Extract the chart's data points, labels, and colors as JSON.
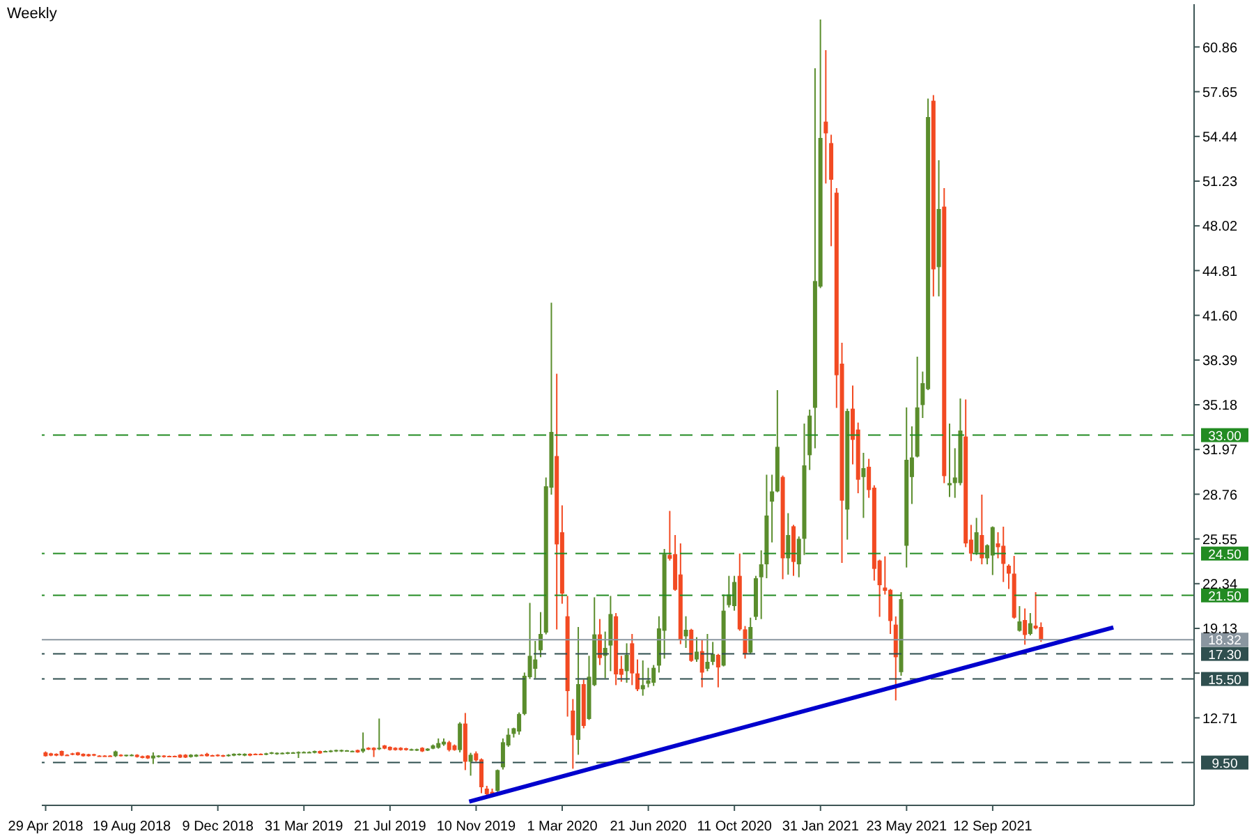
{
  "chart_data": {
    "type": "candlestick",
    "title": "Weekly",
    "x": [
      "2018-04-29",
      "2018-05-06",
      "2018-05-13",
      "2018-05-20",
      "2018-05-27",
      "2018-06-03",
      "2018-06-10",
      "2018-06-17",
      "2018-06-24",
      "2018-07-01",
      "2018-07-08",
      "2018-07-15",
      "2018-07-22",
      "2018-07-29",
      "2018-08-05",
      "2018-08-12",
      "2018-08-19",
      "2018-08-26",
      "2018-09-02",
      "2018-09-09",
      "2018-09-16",
      "2018-09-23",
      "2018-09-30",
      "2018-10-07",
      "2018-10-14",
      "2018-10-21",
      "2018-10-28",
      "2018-11-04",
      "2018-11-11",
      "2018-11-18",
      "2018-11-25",
      "2018-12-02",
      "2018-12-09",
      "2018-12-16",
      "2018-12-23",
      "2018-12-30",
      "2019-01-06",
      "2019-01-13",
      "2019-01-20",
      "2019-01-27",
      "2019-02-03",
      "2019-02-10",
      "2019-02-17",
      "2019-02-24",
      "2019-03-03",
      "2019-03-10",
      "2019-03-17",
      "2019-03-24",
      "2019-03-31",
      "2019-04-07",
      "2019-04-14",
      "2019-04-21",
      "2019-04-28",
      "2019-05-05",
      "2019-05-12",
      "2019-05-19",
      "2019-05-26",
      "2019-06-02",
      "2019-06-09",
      "2019-06-16",
      "2019-06-23",
      "2019-06-30",
      "2019-07-07",
      "2019-07-14",
      "2019-07-21",
      "2019-07-28",
      "2019-08-04",
      "2019-08-11",
      "2019-08-18",
      "2019-08-25",
      "2019-09-01",
      "2019-09-08",
      "2019-09-15",
      "2019-09-22",
      "2019-09-29",
      "2019-10-06",
      "2019-10-13",
      "2019-10-20",
      "2019-10-27",
      "2019-11-03",
      "2019-11-10",
      "2019-11-17",
      "2019-11-24",
      "2019-12-01",
      "2019-12-08",
      "2019-12-15",
      "2019-12-22",
      "2019-12-29",
      "2020-01-05",
      "2020-01-12",
      "2020-01-19",
      "2020-01-26",
      "2020-02-02",
      "2020-02-09",
      "2020-02-16",
      "2020-02-23",
      "2020-03-01",
      "2020-03-08",
      "2020-03-15",
      "2020-03-22",
      "2020-03-29",
      "2020-04-05",
      "2020-04-12",
      "2020-04-19",
      "2020-04-26",
      "2020-05-03",
      "2020-05-10",
      "2020-05-17",
      "2020-05-24",
      "2020-05-31",
      "2020-06-07",
      "2020-06-14",
      "2020-06-21",
      "2020-06-28",
      "2020-07-05",
      "2020-07-12",
      "2020-07-19",
      "2020-07-26",
      "2020-08-02",
      "2020-08-09",
      "2020-08-16",
      "2020-08-23",
      "2020-08-30",
      "2020-09-06",
      "2020-09-13",
      "2020-09-20",
      "2020-09-27",
      "2020-10-04",
      "2020-10-11",
      "2020-10-18",
      "2020-10-25",
      "2020-11-01",
      "2020-11-08",
      "2020-11-15",
      "2020-11-22",
      "2020-11-29",
      "2020-12-06",
      "2020-12-13",
      "2020-12-20",
      "2020-12-27",
      "2021-01-03",
      "2021-01-10",
      "2021-01-17",
      "2021-01-24",
      "2021-01-31",
      "2021-02-07",
      "2021-02-14",
      "2021-02-21",
      "2021-02-28",
      "2021-03-07",
      "2021-03-14",
      "2021-03-21",
      "2021-03-28",
      "2021-04-04",
      "2021-04-11",
      "2021-04-18",
      "2021-04-25",
      "2021-05-02",
      "2021-05-09",
      "2021-05-16",
      "2021-05-23",
      "2021-05-30",
      "2021-06-06",
      "2021-06-13",
      "2021-06-20",
      "2021-06-27",
      "2021-07-04",
      "2021-07-11",
      "2021-07-18",
      "2021-07-25",
      "2021-08-01",
      "2021-08-08",
      "2021-08-15",
      "2021-08-22",
      "2021-08-29",
      "2021-09-05",
      "2021-09-12",
      "2021-09-19",
      "2021-09-26",
      "2021-10-03",
      "2021-10-10",
      "2021-10-17",
      "2021-10-24",
      "2021-10-31",
      "2021-11-07",
      "2021-11-14"
    ],
    "ohlc": [
      [
        10.23,
        10.3,
        9.93,
        9.96
      ],
      [
        10.16,
        10.2,
        9.96,
        10.0
      ],
      [
        10.13,
        10.16,
        9.96,
        10.0
      ],
      [
        10.33,
        10.36,
        9.96,
        10.0
      ],
      [
        10.06,
        10.1,
        10.0,
        10.03
      ],
      [
        10.16,
        10.2,
        10.03,
        10.06
      ],
      [
        10.23,
        10.26,
        10.0,
        10.03
      ],
      [
        10.13,
        10.16,
        9.93,
        9.96
      ],
      [
        10.1,
        10.13,
        9.93,
        9.96
      ],
      [
        10.1,
        10.13,
        9.96,
        10.0
      ],
      [
        10.0,
        10.03,
        9.96,
        9.98
      ],
      [
        10.0,
        10.03,
        9.96,
        9.98
      ],
      [
        10.0,
        10.03,
        9.96,
        9.98
      ],
      [
        9.96,
        10.36,
        9.9,
        10.3
      ],
      [
        10.06,
        10.1,
        9.93,
        9.96
      ],
      [
        9.96,
        10.06,
        9.93,
        10.06
      ],
      [
        10.0,
        10.1,
        9.96,
        10.06
      ],
      [
        10.06,
        10.1,
        9.86,
        9.9
      ],
      [
        9.96,
        10.0,
        9.8,
        9.83
      ],
      [
        10.0,
        10.03,
        9.76,
        9.8
      ],
      [
        9.8,
        10.23,
        9.4,
        10.0
      ],
      [
        9.9,
        10.03,
        9.86,
        10.0
      ],
      [
        10.0,
        10.03,
        9.86,
        9.9
      ],
      [
        9.98,
        10.0,
        9.93,
        9.96
      ],
      [
        9.98,
        10.0,
        9.93,
        9.96
      ],
      [
        10.06,
        10.1,
        9.83,
        9.86
      ],
      [
        10.06,
        10.1,
        9.83,
        9.86
      ],
      [
        9.9,
        10.1,
        9.86,
        10.06
      ],
      [
        9.93,
        10.1,
        9.9,
        10.06
      ],
      [
        10.06,
        10.1,
        10.0,
        10.03
      ],
      [
        10.13,
        10.2,
        9.93,
        9.96
      ],
      [
        10.03,
        10.06,
        9.98,
        10.0
      ],
      [
        10.06,
        10.1,
        9.93,
        9.96
      ],
      [
        10.03,
        10.06,
        9.9,
        9.93
      ],
      [
        9.96,
        10.1,
        9.93,
        10.06
      ],
      [
        10.0,
        10.16,
        9.96,
        10.13
      ],
      [
        10.03,
        10.16,
        10.0,
        10.13
      ],
      [
        10.0,
        10.16,
        9.96,
        10.13
      ],
      [
        10.13,
        10.16,
        9.96,
        10.0
      ],
      [
        10.13,
        10.16,
        10.06,
        10.1
      ],
      [
        10.13,
        10.16,
        10.06,
        10.1
      ],
      [
        10.06,
        10.2,
        10.03,
        10.16
      ],
      [
        10.13,
        10.26,
        10.1,
        10.23
      ],
      [
        10.1,
        10.23,
        10.06,
        10.2
      ],
      [
        10.13,
        10.23,
        10.1,
        10.2
      ],
      [
        10.13,
        10.26,
        10.1,
        10.23
      ],
      [
        10.16,
        10.26,
        10.13,
        10.23
      ],
      [
        10.16,
        10.3,
        9.83,
        10.26
      ],
      [
        10.23,
        10.3,
        10.2,
        10.26
      ],
      [
        10.23,
        10.3,
        10.2,
        10.26
      ],
      [
        10.2,
        10.36,
        10.16,
        10.33
      ],
      [
        10.33,
        10.36,
        10.13,
        10.16
      ],
      [
        10.26,
        10.36,
        10.23,
        10.33
      ],
      [
        10.26,
        10.4,
        10.23,
        10.36
      ],
      [
        10.3,
        10.43,
        10.26,
        10.4
      ],
      [
        10.3,
        10.43,
        10.26,
        10.4
      ],
      [
        10.36,
        10.4,
        10.33,
        10.38
      ],
      [
        10.33,
        10.36,
        10.3,
        10.34
      ],
      [
        10.4,
        10.43,
        10.2,
        10.23
      ],
      [
        10.3,
        11.66,
        10.2,
        10.5
      ],
      [
        10.56,
        10.6,
        10.4,
        10.43
      ],
      [
        10.56,
        10.6,
        9.9,
        10.4
      ],
      [
        10.5,
        12.66,
        10.4,
        10.56
      ],
      [
        10.73,
        10.76,
        10.46,
        10.5
      ],
      [
        10.63,
        10.66,
        10.36,
        10.4
      ],
      [
        10.56,
        10.6,
        10.36,
        10.4
      ],
      [
        10.56,
        10.6,
        10.36,
        10.4
      ],
      [
        10.53,
        10.56,
        10.36,
        10.4
      ],
      [
        10.4,
        10.5,
        10.36,
        10.46
      ],
      [
        10.36,
        10.5,
        10.33,
        10.46
      ],
      [
        10.56,
        10.6,
        10.26,
        10.3
      ],
      [
        10.36,
        10.53,
        10.33,
        10.5
      ],
      [
        10.5,
        10.8,
        10.46,
        10.73
      ],
      [
        10.56,
        11.23,
        10.5,
        10.9
      ],
      [
        10.8,
        11.23,
        10.7,
        11.0
      ],
      [
        10.96,
        11.06,
        10.3,
        10.4
      ],
      [
        10.73,
        10.8,
        10.35,
        10.4
      ],
      [
        10.4,
        12.4,
        10.23,
        12.3
      ],
      [
        12.3,
        13.06,
        8.96,
        9.56
      ],
      [
        9.56,
        10.2,
        8.56,
        10.06
      ],
      [
        10.16,
        10.3,
        9.56,
        9.66
      ],
      [
        9.73,
        9.8,
        7.3,
        7.73
      ],
      [
        7.63,
        7.83,
        6.96,
        7.23
      ],
      [
        7.4,
        7.63,
        7.06,
        7.23
      ],
      [
        7.46,
        9.0,
        7.4,
        8.96
      ],
      [
        9.16,
        11.23,
        9.0,
        10.96
      ],
      [
        10.73,
        11.96,
        10.63,
        11.5
      ],
      [
        11.56,
        12.0,
        11.3,
        11.96
      ],
      [
        11.73,
        13.1,
        11.5,
        12.99
      ],
      [
        12.99,
        15.96,
        12.9,
        15.73
      ],
      [
        15.63,
        20.96,
        15.5,
        17.16
      ],
      [
        16.23,
        18.23,
        15.56,
        16.9
      ],
      [
        17.56,
        20.3,
        17.06,
        18.73
      ],
      [
        18.83,
        29.96,
        18.7,
        29.33
      ],
      [
        29.23,
        42.5,
        28.73,
        33.23
      ],
      [
        31.5,
        37.4,
        19.06,
        25.16
      ],
      [
        26.03,
        27.96,
        20.9,
        21.63
      ],
      [
        20.0,
        21.46,
        12.8,
        14.63
      ],
      [
        13.23,
        14.06,
        9.06,
        11.46
      ],
      [
        11.13,
        19.23,
        10.06,
        15.13
      ],
      [
        15.13,
        15.46,
        11.96,
        12.13
      ],
      [
        12.63,
        17.16,
        12.56,
        15.66
      ],
      [
        15.06,
        21.36,
        14.99,
        18.7
      ],
      [
        18.7,
        19.8,
        16.5,
        17.0
      ],
      [
        17.16,
        18.9,
        15.56,
        17.73
      ],
      [
        17.9,
        21.46,
        16.06,
        20.16
      ],
      [
        20.0,
        20.23,
        15.06,
        15.83
      ],
      [
        16.23,
        17.16,
        15.3,
        15.8
      ],
      [
        16.06,
        18.06,
        15.23,
        17.23
      ],
      [
        18.06,
        18.73,
        15.06,
        15.9
      ],
      [
        15.9,
        16.9,
        14.63,
        14.76
      ],
      [
        14.76,
        16.83,
        14.3,
        15.06
      ],
      [
        15.16,
        16.3,
        14.9,
        15.4
      ],
      [
        15.23,
        16.5,
        15.0,
        16.3
      ],
      [
        16.46,
        20.0,
        15.96,
        19.13
      ],
      [
        18.96,
        24.83,
        16.96,
        24.46
      ],
      [
        24.4,
        27.56,
        24.0,
        24.13
      ],
      [
        24.46,
        25.83,
        21.83,
        21.9
      ],
      [
        23.0,
        25.23,
        18.0,
        18.3
      ],
      [
        18.56,
        20.0,
        17.73,
        19.03
      ],
      [
        19.03,
        19.1,
        16.73,
        16.8
      ],
      [
        16.9,
        18.5,
        16.73,
        17.46
      ],
      [
        17.5,
        18.3,
        14.9,
        15.96
      ],
      [
        16.23,
        18.73,
        16.06,
        16.73
      ],
      [
        16.73,
        18.16,
        16.5,
        17.3
      ],
      [
        17.23,
        17.3,
        14.9,
        16.33
      ],
      [
        16.46,
        21.56,
        16.4,
        20.4
      ],
      [
        20.8,
        22.9,
        20.63,
        21.56
      ],
      [
        20.73,
        22.9,
        20.4,
        22.46
      ],
      [
        22.9,
        24.5,
        18.96,
        19.06
      ],
      [
        19.06,
        19.3,
        16.96,
        17.3
      ],
      [
        17.4,
        19.9,
        17.3,
        19.23
      ],
      [
        19.96,
        22.9,
        19.73,
        22.73
      ],
      [
        22.8,
        24.73,
        19.8,
        23.73
      ],
      [
        23.73,
        30.16,
        22.73,
        27.23
      ],
      [
        28.23,
        30.16,
        25.3,
        28.96
      ],
      [
        28.96,
        36.23,
        28.9,
        32.16
      ],
      [
        30.0,
        30.1,
        22.66,
        24.16
      ],
      [
        24.16,
        27.4,
        22.99,
        25.83
      ],
      [
        26.46,
        26.56,
        22.9,
        23.9
      ],
      [
        23.73,
        25.73,
        22.8,
        25.56
      ],
      [
        25.56,
        33.83,
        24.4,
        30.83
      ],
      [
        31.56,
        34.83,
        30.5,
        34.4
      ],
      [
        34.96,
        59.33,
        32.06,
        44.06
      ],
      [
        43.66,
        62.83,
        43.56,
        54.33
      ],
      [
        55.5,
        60.63,
        51.06,
        54.66
      ],
      [
        53.96,
        54.56,
        46.56,
        51.33
      ],
      [
        50.4,
        50.73,
        34.96,
        37.3
      ],
      [
        38.13,
        39.63,
        23.83,
        28.3
      ],
      [
        27.66,
        34.9,
        25.5,
        34.73
      ],
      [
        34.9,
        36.56,
        30.9,
        32.66
      ],
      [
        33.4,
        33.9,
        28.83,
        29.8
      ],
      [
        29.99,
        31.73,
        27.06,
        30.63
      ],
      [
        30.73,
        31.3,
        28.5,
        29.06
      ],
      [
        29.23,
        29.4,
        22.56,
        23.4
      ],
      [
        24.0,
        24.06,
        19.96,
        22.23
      ],
      [
        22.06,
        24.3,
        21.56,
        21.83
      ],
      [
        21.9,
        21.96,
        18.73,
        19.66
      ],
      [
        19.4,
        19.99,
        13.96,
        17.06
      ],
      [
        15.99,
        21.73,
        15.73,
        21.23
      ],
      [
        25.06,
        34.99,
        23.5,
        31.23
      ],
      [
        29.99,
        33.63,
        28.06,
        31.4
      ],
      [
        31.46,
        38.63,
        31.4,
        34.99
      ],
      [
        35.16,
        37.56,
        34.23,
        36.73
      ],
      [
        36.3,
        57.16,
        36.23,
        55.83
      ],
      [
        57.0,
        57.4,
        42.96,
        44.9
      ],
      [
        45.06,
        52.73,
        42.96,
        49.23
      ],
      [
        49.4,
        50.73,
        29.56,
        30.06
      ],
      [
        29.4,
        33.83,
        28.56,
        29.56
      ],
      [
        29.56,
        32.06,
        28.5,
        29.96
      ],
      [
        29.56,
        35.63,
        29.4,
        33.33
      ],
      [
        32.9,
        35.56,
        24.96,
        25.23
      ],
      [
        25.5,
        26.56,
        23.96,
        24.5
      ],
      [
        24.56,
        27.06,
        24.4,
        26.03
      ],
      [
        25.83,
        28.73,
        23.73,
        24.16
      ],
      [
        24.16,
        25.16,
        23.73,
        25.1
      ],
      [
        24.36,
        26.45,
        22.96,
        26.4
      ],
      [
        25.23,
        26.03,
        24.16,
        24.96
      ],
      [
        25.06,
        26.43,
        22.46,
        23.76
      ],
      [
        23.63,
        23.73,
        21.96,
        23.06
      ],
      [
        23.06,
        24.33,
        19.83,
        19.9
      ],
      [
        18.96,
        20.73,
        18.9,
        19.63
      ],
      [
        19.73,
        20.56,
        17.96,
        18.66
      ],
      [
        18.73,
        20.23,
        18.63,
        19.5
      ],
      [
        19.33,
        21.73,
        19.06,
        19.13
      ],
      [
        19.23,
        19.56,
        18.16,
        18.32
      ]
    ],
    "colors": [
      "#f24a22",
      "#f24a22",
      "#f24a22",
      "#f24a22",
      "#f24a22",
      "#f24a22",
      "#f24a22",
      "#f24a22",
      "#f24a22",
      "#f24a22",
      "#f24a22",
      "#f24a22",
      "#f24a22",
      "#5a8d2c",
      "#f24a22",
      "#5a8d2c",
      "#5a8d2c",
      "#f24a22",
      "#f24a22",
      "#f24a22",
      "#5a8d2c",
      "#5a8d2c",
      "#f24a22",
      "#f24a22",
      "#f24a22",
      "#f24a22",
      "#f24a22",
      "#5a8d2c",
      "#5a8d2c",
      "#f24a22",
      "#f24a22",
      "#f24a22",
      "#f24a22",
      "#f24a22",
      "#5a8d2c",
      "#5a8d2c",
      "#5a8d2c",
      "#5a8d2c",
      "#f24a22",
      "#f24a22",
      "#f24a22",
      "#5a8d2c",
      "#5a8d2c",
      "#5a8d2c",
      "#5a8d2c",
      "#5a8d2c",
      "#5a8d2c",
      "#5a8d2c",
      "#5a8d2c",
      "#5a8d2c",
      "#5a8d2c",
      "#f24a22",
      "#5a8d2c",
      "#5a8d2c",
      "#5a8d2c",
      "#5a8d2c",
      "#5a8d2c",
      "#5a8d2c",
      "#f24a22",
      "#5a8d2c",
      "#f24a22",
      "#f24a22",
      "#5a8d2c",
      "#f24a22",
      "#f24a22",
      "#f24a22",
      "#f24a22",
      "#f24a22",
      "#5a8d2c",
      "#5a8d2c",
      "#f24a22",
      "#5a8d2c",
      "#5a8d2c",
      "#5a8d2c",
      "#5a8d2c",
      "#f24a22",
      "#f24a22",
      "#5a8d2c",
      "#f24a22",
      "#5a8d2c",
      "#f24a22",
      "#f24a22",
      "#f24a22",
      "#f24a22",
      "#5a8d2c",
      "#5a8d2c",
      "#5a8d2c",
      "#5a8d2c",
      "#5a8d2c",
      "#5a8d2c",
      "#5a8d2c",
      "#5a8d2c",
      "#5a8d2c",
      "#5a8d2c",
      "#5a8d2c",
      "#f24a22",
      "#f24a22",
      "#f24a22",
      "#f24a22",
      "#5a8d2c",
      "#f24a22",
      "#5a8d2c",
      "#5a8d2c",
      "#f24a22",
      "#5a8d2c",
      "#5a8d2c",
      "#f24a22",
      "#f24a22",
      "#5a8d2c",
      "#f24a22",
      "#f24a22",
      "#5a8d2c",
      "#5a8d2c",
      "#5a8d2c",
      "#5a8d2c",
      "#5a8d2c",
      "#f24a22",
      "#f24a22",
      "#f24a22",
      "#5a8d2c",
      "#f24a22",
      "#5a8d2c",
      "#f24a22",
      "#5a8d2c",
      "#5a8d2c",
      "#f24a22",
      "#5a8d2c",
      "#5a8d2c",
      "#5a8d2c",
      "#f24a22",
      "#f24a22",
      "#5a8d2c",
      "#5a8d2c",
      "#5a8d2c",
      "#5a8d2c",
      "#5a8d2c",
      "#5a8d2c",
      "#f24a22",
      "#5a8d2c",
      "#f24a22",
      "#5a8d2c",
      "#5a8d2c",
      "#5a8d2c",
      "#5a8d2c",
      "#5a8d2c",
      "#f24a22",
      "#f24a22",
      "#f24a22",
      "#f24a22",
      "#5a8d2c",
      "#f24a22",
      "#f24a22",
      "#5a8d2c",
      "#f24a22",
      "#f24a22",
      "#f24a22",
      "#f24a22",
      "#f24a22",
      "#f24a22",
      "#5a8d2c",
      "#5a8d2c",
      "#5a8d2c",
      "#5a8d2c",
      "#5a8d2c",
      "#5a8d2c",
      "#f24a22",
      "#5a8d2c",
      "#f24a22",
      "#5a8d2c",
      "#5a8d2c",
      "#5a8d2c",
      "#f24a22",
      "#f24a22",
      "#5a8d2c",
      "#f24a22",
      "#5a8d2c",
      "#5a8d2c",
      "#f24a22",
      "#f24a22",
      "#f24a22",
      "#f24a22",
      "#5a8d2c",
      "#f24a22",
      "#5a8d2c",
      "#f24a22",
      "#f24a22"
    ],
    "series": [
      {
        "type": "line",
        "color": "#0000cd",
        "x": [
          "2019-11-01",
          "2022-02-16"
        ],
        "values": [
          6.7,
          19.2
        ]
      }
    ],
    "xlim": [
      "2018-04-24",
      "2022-06-01"
    ],
    "xticks": [
      {
        "value": "2018-04-29",
        "label": "29 Apr 2018"
      },
      {
        "value": "2018-08-19",
        "label": "19 Aug 2018"
      },
      {
        "value": "2018-12-09",
        "label": "9 Dec 2018"
      },
      {
        "value": "2019-03-31",
        "label": "31 Mar 2019"
      },
      {
        "value": "2019-07-21",
        "label": "21 Jul 2019"
      },
      {
        "value": "2019-11-10",
        "label": "10 Nov 2019"
      },
      {
        "value": "2020-03-01",
        "label": "1 Mar 2020"
      },
      {
        "value": "2020-06-21",
        "label": "21 Jun 2020"
      },
      {
        "value": "2020-10-11",
        "label": "11 Oct 2020"
      },
      {
        "value": "2021-01-31",
        "label": "31 Jan 2021"
      },
      {
        "value": "2021-05-23",
        "label": "23 May 2021"
      },
      {
        "value": "2021-09-12",
        "label": "12 Sep 2021"
      }
    ],
    "ylim": [
      6.43,
      63.93
    ],
    "yticks": [
      12.71,
      {
        "value": 15.92,
        "label": null
      },
      19.13,
      22.34,
      25.55,
      28.76,
      31.97,
      35.18,
      38.39,
      {
        "value": 41.6,
        "label": "41.60"
      },
      44.81,
      48.02,
      51.23,
      54.44,
      57.65,
      60.86
    ],
    "ref_lines": [
      {
        "axis": "y",
        "value": 33,
        "label": "33.00",
        "color": "#228b22",
        "line_style": "dashed"
      },
      {
        "axis": "y",
        "value": 24.5,
        "label": "24.50",
        "color": "#228b22",
        "line_style": "dashed"
      },
      {
        "axis": "y",
        "value": 21.5,
        "label": "21.50",
        "color": "#228b22",
        "line_style": "dashed"
      },
      {
        "axis": "y",
        "value": 18.32,
        "label": "18.32",
        "color": "#8a96a0",
        "line_style": "solid"
      },
      {
        "axis": "y",
        "value": 17.3,
        "label": "17.30",
        "color": "#2f4f4f",
        "line_style": "dashed"
      },
      {
        "axis": "y",
        "value": 15.5,
        "label": "15.50",
        "color": "#2f4f4f",
        "line_style": "dashed"
      },
      {
        "axis": "y",
        "value": 9.5,
        "label": "9.50",
        "color": "#2f4f4f",
        "line_style": "dashed"
      }
    ]
  }
}
